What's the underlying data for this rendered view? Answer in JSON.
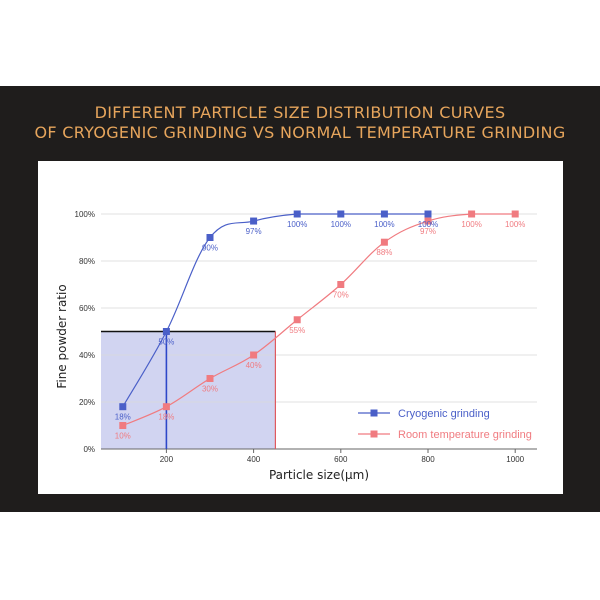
{
  "title_lines": [
    "DIFFERENT PARTICLE SIZE DISTRIBUTION CURVES",
    "OF CRYOGENIC GRINDING VS NORMAL TEMPERATURE GRINDING"
  ],
  "chart_data": {
    "type": "line",
    "xlabel": "Particle size(μm)",
    "ylabel": "Fine powder ratio",
    "xlim": [
      50,
      1050
    ],
    "ylim": [
      0,
      100
    ],
    "x_ticks": [
      200,
      400,
      600,
      800,
      1000
    ],
    "y_ticks": [
      "0%",
      "20%",
      "40%",
      "60%",
      "80%",
      "100%"
    ],
    "grid": "horizontal",
    "legend_position": "bottom-right",
    "series": [
      {
        "name": "Cryogenic grinding",
        "color": "#4a5fc8",
        "label_color": "#4a5fc8",
        "marker": "square",
        "x": [
          100,
          200,
          300,
          400,
          500,
          600,
          700,
          800
        ],
        "values": [
          18,
          50,
          90,
          97,
          100,
          100,
          100,
          100
        ],
        "labels": [
          "18%",
          "50%",
          "90%",
          "97%",
          "100%",
          "100%",
          "100%",
          "100%"
        ]
      },
      {
        "name": "Room temperature grinding",
        "color": "#f07b80",
        "label_color": "#f07b80",
        "marker": "square",
        "x": [
          100,
          200,
          300,
          400,
          500,
          600,
          700,
          800,
          900,
          1000
        ],
        "values": [
          10,
          18,
          30,
          40,
          55,
          70,
          88,
          97,
          100,
          100
        ],
        "labels": [
          "10%",
          "18%",
          "30%",
          "40%",
          "55%",
          "70%",
          "88%",
          "97%",
          "100%",
          "100%"
        ]
      }
    ],
    "highlight": {
      "fill": "#c9cdef",
      "x_range": [
        50,
        450
      ],
      "y_range": [
        0,
        50
      ],
      "x_marker": 200,
      "y_marker": 50,
      "x_boundary": 450
    }
  }
}
